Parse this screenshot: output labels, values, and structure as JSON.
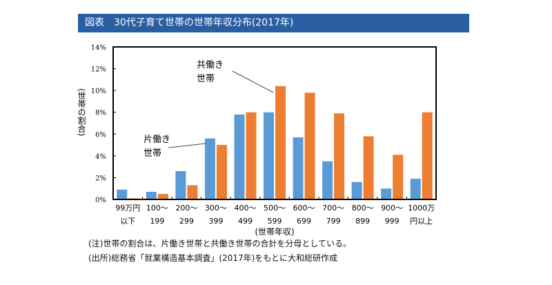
{
  "title": "図表　30代子育て世帯の世帯年収分布(2017年)",
  "notes": [
    "(注)世帯の割合は、片働き世帯と共働き世帯の合計を分母としている。",
    "(出所)総務省「就業構造基本調査」(2017年)をもとに大和総研作成"
  ],
  "chart_data": {
    "type": "bar",
    "title": "30代子育て世帯の世帯年収分布(2017年)",
    "xlabel": "(世帯年収)",
    "ylabel": "(世帯の割合)",
    "ylim": [
      0,
      14
    ],
    "yticks": [
      "0%",
      "2%",
      "4%",
      "6%",
      "8%",
      "10%",
      "12%",
      "14%"
    ],
    "grid": false,
    "categories": [
      [
        "99万円",
        "以下"
      ],
      [
        "100〜",
        "199"
      ],
      [
        "200〜",
        "299"
      ],
      [
        "300〜",
        "399"
      ],
      [
        "400〜",
        "499"
      ],
      [
        "500〜",
        "599"
      ],
      [
        "600〜",
        "699"
      ],
      [
        "700〜",
        "799"
      ],
      [
        "800〜",
        "899"
      ],
      [
        "900〜",
        "999"
      ],
      [
        "1000万",
        "円以上"
      ]
    ],
    "series": [
      {
        "name": "片働き世帯",
        "color": "#5b9bd5",
        "values": [
          0.9,
          0.7,
          2.6,
          5.6,
          7.8,
          8.0,
          5.7,
          3.5,
          1.6,
          1.0,
          1.9
        ]
      },
      {
        "name": "共働き世帯",
        "color": "#ed7d31",
        "values": [
          0.1,
          0.5,
          1.3,
          5.0,
          8.0,
          10.4,
          9.8,
          7.9,
          5.8,
          4.1,
          8.0
        ]
      }
    ],
    "annotations": [
      {
        "lines": [
          "片働き",
          "世帯"
        ],
        "series": 0,
        "category": 3
      },
      {
        "lines": [
          "共働き",
          "世帯"
        ],
        "series": 1,
        "category": 5
      }
    ]
  }
}
